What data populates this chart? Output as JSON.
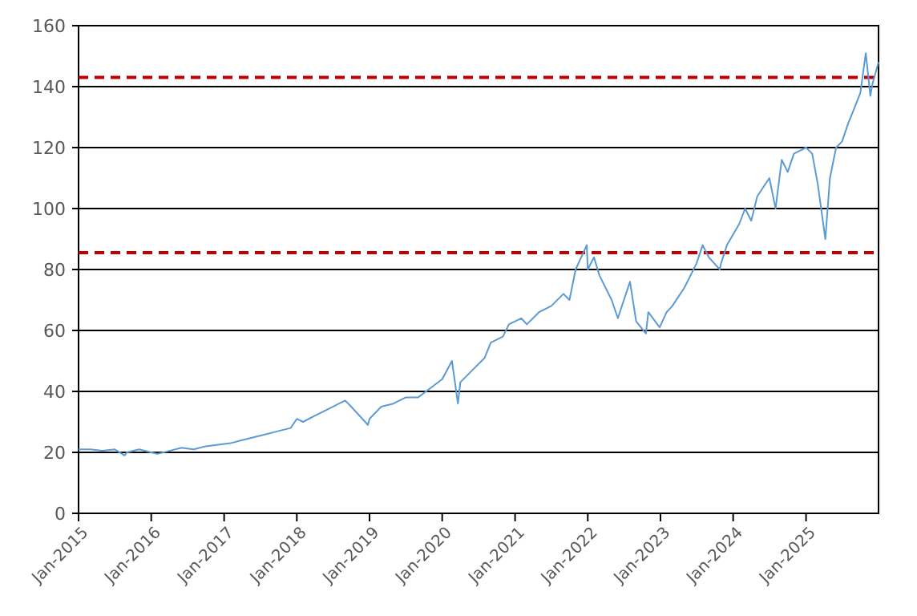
{
  "chart_data": {
    "type": "line",
    "x": [
      "2015-01-01",
      "2015-03",
      "2015-05",
      "2015-07",
      "2015-08-20",
      "2015-09",
      "2015-11",
      "2016-01",
      "2016-02",
      "2016-04",
      "2016-06",
      "2016-08",
      "2016-10",
      "2016-12",
      "2017-02",
      "2017-04",
      "2017-06",
      "2017-08",
      "2017-10",
      "2017-12",
      "2018-01",
      "2018-02",
      "2018-04",
      "2018-06",
      "2018-08",
      "2018-09",
      "2018-10",
      "2018-12-24",
      "2019-01",
      "2019-03",
      "2019-05",
      "2019-07",
      "2019-09",
      "2019-11",
      "2020-01",
      "2020-02-19",
      "2020-03-20",
      "2020-04",
      "2020-06",
      "2020-08",
      "2020-09",
      "2020-11",
      "2020-12",
      "2021-02",
      "2021-03",
      "2021-05",
      "2021-07",
      "2021-09",
      "2021-10",
      "2021-11",
      "2021-12-27",
      "2022-01",
      "2022-02",
      "2022-03",
      "2022-05",
      "2022-06",
      "2022-08",
      "2022-09",
      "2022-10-20",
      "2022-11",
      "2022-12-28",
      "2023-02",
      "2023-03",
      "2023-05",
      "2023-07",
      "2023-08",
      "2023-09",
      "2023-10-26",
      "2023-11",
      "2023-12",
      "2024-02",
      "2024-03",
      "2024-04",
      "2024-05",
      "2024-07",
      "2024-08",
      "2024-09",
      "2024-10",
      "2024-11",
      "2024-12",
      "2025-01",
      "2025-02",
      "2025-03",
      "2025-04-08",
      "2025-05",
      "2025-06",
      "2025-07",
      "2025-08",
      "2025-09",
      "2025-10",
      "2025-10-28",
      "2025-11-20",
      "2025-12",
      "2025-12-31"
    ],
    "series": [
      {
        "color": "#5b9bd5",
        "values": [
          21,
          21,
          20.5,
          21,
          19,
          20,
          21,
          20,
          19.5,
          20.5,
          21.5,
          21,
          22,
          22.5,
          23,
          24,
          25,
          26,
          27,
          28,
          31,
          30,
          32,
          34,
          36,
          37,
          35,
          29,
          31,
          35,
          36,
          38,
          38,
          41,
          44,
          50,
          36,
          43,
          47,
          51,
          56,
          58,
          62,
          64,
          62,
          66,
          68,
          72,
          70,
          80,
          88,
          80,
          84,
          78,
          70,
          64,
          76,
          63,
          59,
          66,
          61,
          66,
          68,
          74,
          82,
          88,
          84,
          80,
          82,
          88,
          95,
          100,
          96,
          104,
          110,
          100,
          116,
          112,
          118,
          119,
          120,
          118,
          108,
          90,
          110,
          120,
          122,
          128,
          133,
          138,
          151,
          137,
          141,
          148
        ]
      }
    ],
    "xlim": [
      "2015-01-01",
      "2025-12-31"
    ],
    "xticks": [
      {
        "value": "2015-01",
        "label": "Jan-2015"
      },
      {
        "value": "2016-01",
        "label": "Jan-2016"
      },
      {
        "value": "2017-01",
        "label": "Jan-2017"
      },
      {
        "value": "2018-01",
        "label": "Jan-2018"
      },
      {
        "value": "2019-01",
        "label": "Jan-2019"
      },
      {
        "value": "2020-01",
        "label": "Jan-2020"
      },
      {
        "value": "2021-01",
        "label": "Jan-2021"
      },
      {
        "value": "2022-01",
        "label": "Jan-2022"
      },
      {
        "value": "2023-01",
        "label": "Jan-2023"
      },
      {
        "value": "2024-01",
        "label": "Jan-2024"
      },
      {
        "value": "2025-01",
        "label": "Jan-2025"
      }
    ],
    "ylim": [
      0,
      160
    ],
    "yticks": [
      0,
      20,
      40,
      60,
      80,
      100,
      120,
      140,
      160
    ],
    "grid": "y",
    "ref_lines": [
      {
        "axis": "y",
        "value": 143,
        "color": "#c00000",
        "line_style": "dashed"
      },
      {
        "axis": "y",
        "value": 85.5,
        "color": "#c00000",
        "line_style": "dashed"
      }
    ]
  }
}
